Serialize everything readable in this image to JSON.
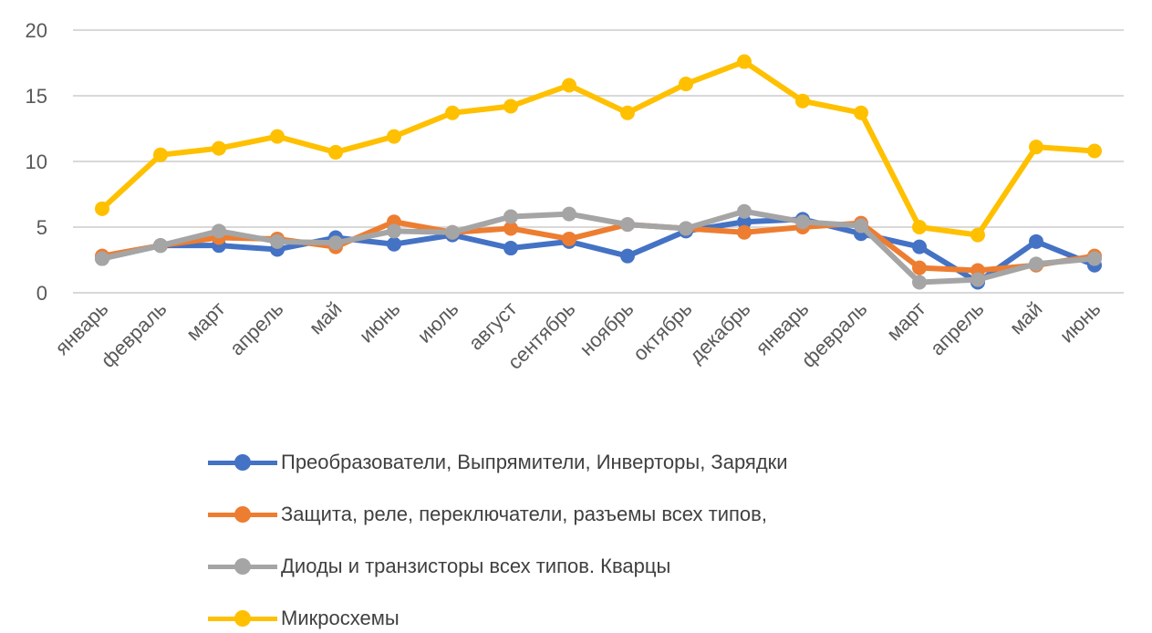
{
  "chart_data": {
    "type": "line",
    "title": "",
    "xlabel": "",
    "ylabel": "",
    "ylim": [
      0,
      20
    ],
    "yticks": [
      "0",
      "5",
      "10",
      "15",
      "20"
    ],
    "categories": [
      "январь",
      "февраль",
      "март",
      "апрель",
      "май",
      "июнь",
      "июль",
      "август",
      "сентябрь",
      "ноябрь",
      "октябрь",
      "декабрь",
      "январь",
      "февраль",
      "март",
      "апрель",
      "май",
      "июнь"
    ],
    "grid": true,
    "legend_position": "bottom",
    "series": [
      {
        "name": "Преобразователи, Выпрямители, Инверторы, Зарядки",
        "color": "#4472C4",
        "values": [
          2.6,
          3.6,
          3.6,
          3.3,
          4.2,
          3.7,
          4.4,
          3.4,
          3.9,
          2.8,
          4.7,
          5.4,
          5.6,
          4.5,
          3.5,
          0.8,
          3.9,
          2.1
        ]
      },
      {
        "name": "Защита, реле, переключатели, разъемы всех типов,",
        "color": "#ED7D31",
        "values": [
          2.8,
          3.6,
          4.2,
          4.1,
          3.5,
          5.4,
          4.6,
          4.9,
          4.1,
          5.2,
          4.9,
          4.6,
          5.0,
          5.3,
          1.9,
          1.7,
          2.1,
          2.8
        ]
      },
      {
        "name": "Диоды и транзисторы всех типов.  Кварцы",
        "color": "#A5A5A5",
        "values": [
          2.6,
          3.6,
          4.7,
          3.9,
          3.8,
          4.7,
          4.6,
          5.8,
          6.0,
          5.2,
          4.9,
          6.2,
          5.4,
          5.1,
          0.8,
          1.0,
          2.2,
          2.6
        ]
      },
      {
        "name": "Микросхемы",
        "color": "#FFC000",
        "values": [
          6.4,
          10.5,
          11.0,
          11.9,
          10.7,
          11.9,
          13.7,
          14.2,
          15.8,
          13.7,
          15.9,
          17.6,
          14.6,
          13.7,
          5.0,
          4.4,
          11.1,
          10.8
        ]
      }
    ]
  }
}
